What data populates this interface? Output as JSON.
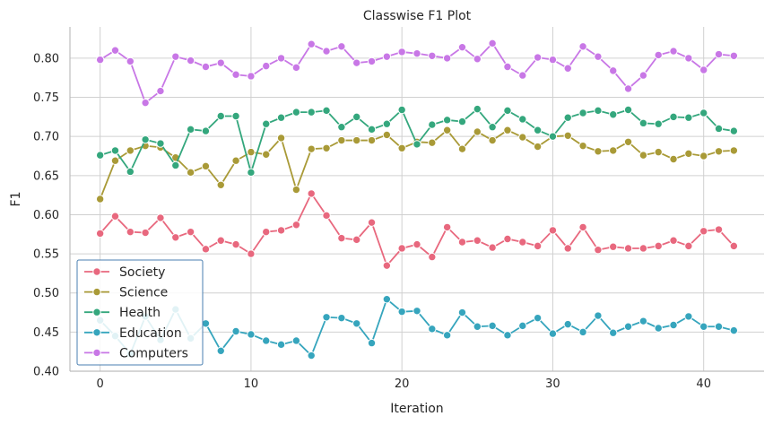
{
  "chart_data": {
    "type": "line",
    "title": "Classwise F1 Plot",
    "xlabel": "Iteration",
    "ylabel": "F1",
    "xlim": [
      -2,
      44
    ],
    "ylim": [
      0.4,
      0.84
    ],
    "xticks": [
      0,
      10,
      20,
      30,
      40
    ],
    "yticks": [
      0.4,
      0.45,
      0.5,
      0.55,
      0.6,
      0.65,
      0.7,
      0.75,
      0.8
    ],
    "ytick_labels": [
      "0.40",
      "0.45",
      "0.50",
      "0.55",
      "0.60",
      "0.65",
      "0.70",
      "0.75",
      "0.80"
    ],
    "grid": true,
    "legend_position": "lower-left",
    "x": [
      0,
      1,
      2,
      3,
      4,
      5,
      6,
      7,
      8,
      9,
      10,
      11,
      12,
      13,
      14,
      15,
      16,
      17,
      18,
      19,
      20,
      21,
      22,
      23,
      24,
      25,
      26,
      27,
      28,
      29,
      30,
      31,
      32,
      33,
      34,
      35,
      36,
      37,
      38,
      39,
      40,
      41,
      42
    ],
    "series": [
      {
        "name": "Society",
        "color": "#e8687e",
        "values": [
          0.576,
          0.598,
          0.578,
          0.577,
          0.596,
          0.571,
          0.578,
          0.556,
          0.567,
          0.562,
          0.55,
          0.578,
          0.58,
          0.587,
          0.627,
          0.599,
          0.57,
          0.568,
          0.59,
          0.535,
          0.557,
          0.562,
          0.546,
          0.584,
          0.565,
          0.567,
          0.558,
          0.569,
          0.565,
          0.56,
          0.58,
          0.557,
          0.584,
          0.555,
          0.559,
          0.557,
          0.557,
          0.56,
          0.567,
          0.56,
          0.579,
          0.581,
          0.56
        ]
      },
      {
        "name": "Science",
        "color": "#a99a37",
        "values": [
          0.62,
          0.669,
          0.682,
          0.688,
          0.686,
          0.673,
          0.654,
          0.662,
          0.638,
          0.669,
          0.68,
          0.677,
          0.698,
          0.632,
          0.684,
          0.685,
          0.695,
          0.695,
          0.695,
          0.702,
          0.685,
          0.693,
          0.692,
          0.708,
          0.684,
          0.706,
          0.695,
          0.708,
          0.699,
          0.687,
          0.7,
          0.701,
          0.688,
          0.681,
          0.682,
          0.693,
          0.676,
          0.68,
          0.671,
          0.678,
          0.675,
          0.681,
          0.682
        ]
      },
      {
        "name": "Health",
        "color": "#34a77d",
        "values": [
          0.676,
          0.682,
          0.655,
          0.696,
          0.691,
          0.663,
          0.709,
          0.707,
          0.726,
          0.726,
          0.654,
          0.716,
          0.724,
          0.731,
          0.731,
          0.733,
          0.712,
          0.725,
          0.709,
          0.716,
          0.734,
          0.69,
          0.715,
          0.721,
          0.719,
          0.735,
          0.712,
          0.733,
          0.722,
          0.708,
          0.7,
          0.724,
          0.73,
          0.733,
          0.728,
          0.734,
          0.717,
          0.716,
          0.725,
          0.724,
          0.73,
          0.71,
          0.707
        ]
      },
      {
        "name": "Education",
        "color": "#36a5bd",
        "values": [
          0.465,
          0.445,
          0.422,
          0.47,
          0.44,
          0.479,
          0.442,
          0.461,
          0.426,
          0.451,
          0.447,
          0.439,
          0.434,
          0.439,
          0.42,
          0.469,
          0.468,
          0.461,
          0.436,
          0.492,
          0.476,
          0.477,
          0.454,
          0.446,
          0.475,
          0.457,
          0.458,
          0.446,
          0.458,
          0.468,
          0.448,
          0.46,
          0.45,
          0.471,
          0.449,
          0.457,
          0.464,
          0.455,
          0.459,
          0.47,
          0.457,
          0.457,
          0.452
        ]
      },
      {
        "name": "Computers",
        "color": "#c877e6",
        "values": [
          0.798,
          0.81,
          0.796,
          0.743,
          0.758,
          0.802,
          0.797,
          0.789,
          0.794,
          0.779,
          0.777,
          0.79,
          0.8,
          0.788,
          0.818,
          0.809,
          0.815,
          0.794,
          0.796,
          0.802,
          0.808,
          0.806,
          0.803,
          0.8,
          0.814,
          0.799,
          0.819,
          0.789,
          0.778,
          0.801,
          0.798,
          0.787,
          0.815,
          0.802,
          0.784,
          0.761,
          0.778,
          0.804,
          0.809,
          0.8,
          0.785,
          0.805,
          0.803
        ]
      }
    ]
  }
}
